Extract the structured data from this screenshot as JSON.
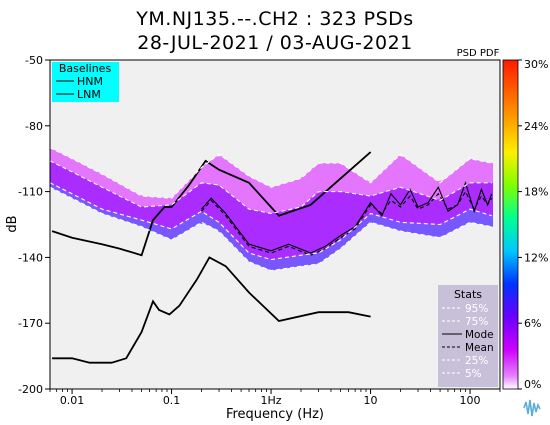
{
  "header": {
    "title": "YM.NJ135.--.CH2 : 323 PSDs",
    "subtitle": "28-JUL-2021 / 03-AUG-2021"
  },
  "colorbar": {
    "title": "PSD PDF",
    "ticks": [
      "0%",
      "6%",
      "12%",
      "18%",
      "24%",
      "30%"
    ],
    "range": [
      0,
      30
    ],
    "colors": [
      "#ffffff",
      "#dd00ff",
      "#7a00ff",
      "#0033ff",
      "#00c8ff",
      "#00ff80",
      "#7fff00",
      "#ffee00",
      "#ff8800",
      "#ff2200"
    ]
  },
  "baselines_legend": {
    "title": "Baselines",
    "items": [
      "HNM",
      "LNM"
    ],
    "bg_color": "#00ffff"
  },
  "stats_legend": {
    "title": "Stats",
    "items": [
      {
        "label": "95%",
        "style": "white-dashed"
      },
      {
        "label": "75%",
        "style": "white-dashed"
      },
      {
        "label": "Mode",
        "style": "black-solid"
      },
      {
        "label": "Mean",
        "style": "black-dashed"
      },
      {
        "label": "25%",
        "style": "white-dashed"
      },
      {
        "label": "5%",
        "style": "white-dashed"
      }
    ],
    "bg_color": "#c8c0d8"
  },
  "chart_data": {
    "type": "line",
    "xlabel": "Frequency (Hz)",
    "ylabel": "dB",
    "x_scale": "log",
    "xlim": [
      0.006,
      200
    ],
    "ylim": [
      -200,
      -50
    ],
    "xticks": [
      {
        "value": 0.01,
        "label": "0.01"
      },
      {
        "value": 0.1,
        "label": "0.1"
      },
      {
        "value": 1,
        "label": "1Hz"
      },
      {
        "value": 10,
        "label": "10"
      },
      {
        "value": 100,
        "label": "100"
      }
    ],
    "yticks": [
      -50,
      -80,
      -110,
      -140,
      -170,
      -200
    ],
    "plot_bg_color": "#f0f0f0",
    "series": [
      {
        "name": "HNM",
        "color": "#000000",
        "x": [
          0.0063,
          0.01,
          0.02,
          0.03,
          0.05,
          0.065,
          0.085,
          0.1,
          0.15,
          0.22,
          0.3,
          0.6,
          1.2,
          2.5,
          5,
          10
        ],
        "y": [
          -128,
          -131,
          -134,
          -136,
          -139,
          -123,
          -117,
          -117,
          -107,
          -96,
          -100,
          -106,
          -121,
          -116,
          -104,
          -92
        ]
      },
      {
        "name": "LNM",
        "color": "#000000",
        "x": [
          0.0063,
          0.01,
          0.015,
          0.025,
          0.035,
          0.05,
          0.065,
          0.075,
          0.095,
          0.12,
          0.18,
          0.24,
          0.35,
          0.6,
          1.2,
          3,
          6,
          10
        ],
        "y": [
          -186,
          -186,
          -188,
          -188,
          -186,
          -174,
          -160,
          -164,
          -166,
          -162,
          -150,
          -140,
          -144,
          -156,
          -169,
          -165,
          -165,
          -167
        ]
      },
      {
        "name": "Mode",
        "color": "#000000",
        "x": [
          0.2,
          0.25,
          0.35,
          0.6,
          1,
          1.5,
          2.5,
          3.5,
          5,
          7,
          10,
          13,
          16,
          20,
          25,
          30,
          38,
          48,
          60,
          75,
          90,
          110,
          130,
          150,
          165
        ],
        "y": [
          -118,
          -113,
          -120,
          -134,
          -137,
          -134,
          -138,
          -135,
          -130,
          -126,
          -115,
          -121,
          -111,
          -116,
          -109,
          -117,
          -115,
          -108,
          -119,
          -116,
          -106,
          -119,
          -109,
          -116,
          -111
        ]
      },
      {
        "name": "Mean",
        "color": "#000000",
        "x": [
          0.2,
          0.25,
          0.35,
          0.6,
          1,
          1.5,
          2.5,
          3.5,
          5,
          7,
          10,
          13,
          16,
          20,
          25,
          30,
          38,
          48,
          60,
          75,
          90,
          110,
          130,
          150,
          165
        ],
        "y": [
          -119,
          -114,
          -121,
          -135,
          -138,
          -135,
          -139,
          -136,
          -131,
          -127,
          -116,
          -120,
          -114,
          -117,
          -112,
          -118,
          -116,
          -111,
          -118,
          -116,
          -110,
          -118,
          -112,
          -116,
          -113
        ]
      },
      {
        "name": "95%",
        "color": "#ffffff",
        "x": [
          0.006,
          0.01,
          0.02,
          0.05,
          0.1,
          0.2,
          0.3,
          0.6,
          1,
          2,
          3,
          5,
          10,
          20,
          50,
          100,
          165
        ],
        "y": [
          -90,
          -95,
          -102,
          -112,
          -113,
          -99,
          -93,
          -103,
          -108,
          -104,
          -97,
          -97,
          -106,
          -93,
          -106,
          -95,
          -97
        ]
      },
      {
        "name": "75%",
        "color": "#ffffff",
        "x": [
          0.006,
          0.01,
          0.02,
          0.05,
          0.1,
          0.2,
          0.3,
          0.6,
          1,
          2,
          3,
          5,
          10,
          20,
          50,
          100,
          165
        ],
        "y": [
          -96,
          -101,
          -108,
          -117,
          -116,
          -106,
          -107,
          -118,
          -120,
          -117,
          -110,
          -110,
          -112,
          -108,
          -114,
          -106,
          -106
        ]
      },
      {
        "name": "25%",
        "color": "#ffffff",
        "x": [
          0.006,
          0.01,
          0.02,
          0.05,
          0.1,
          0.2,
          0.3,
          0.6,
          1,
          2,
          3,
          5,
          10,
          20,
          50,
          100,
          165
        ],
        "y": [
          -106,
          -111,
          -118,
          -123,
          -127,
          -119,
          -124,
          -138,
          -141,
          -139,
          -138,
          -132,
          -120,
          -124,
          -125,
          -118,
          -121
        ]
      },
      {
        "name": "5%",
        "color": "#ffffff",
        "x": [
          0.006,
          0.01,
          0.02,
          0.05,
          0.1,
          0.2,
          0.3,
          0.6,
          1,
          2,
          3,
          5,
          10,
          20,
          50,
          100,
          165
        ],
        "y": [
          -108,
          -113,
          -120,
          -126,
          -132,
          -124,
          -128,
          -142,
          -146,
          -144,
          -143,
          -136,
          -124,
          -128,
          -131,
          -124,
          -126
        ]
      }
    ]
  }
}
